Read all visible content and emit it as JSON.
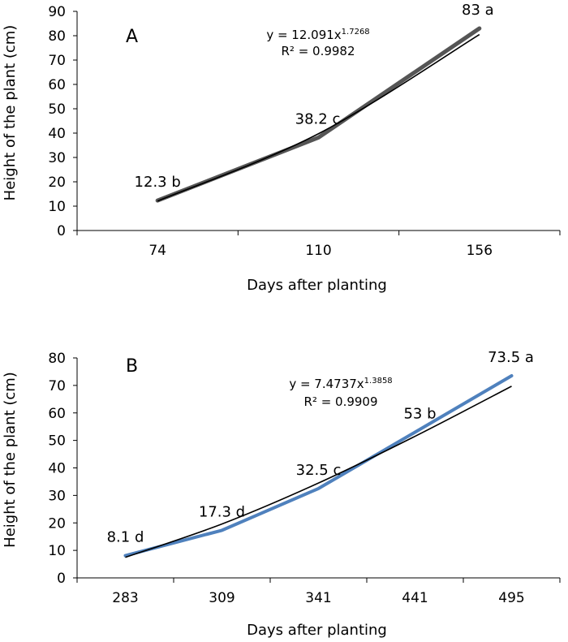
{
  "chart_data": [
    {
      "type": "line",
      "panel_label": "A",
      "xlabel": "Days after planting",
      "ylabel": "Height of the plant (cm)",
      "ylim": [
        0,
        90
      ],
      "yticks": [
        "0",
        "10",
        "20",
        "30",
        "40",
        "50",
        "60",
        "70",
        "80",
        "90"
      ],
      "categories": [
        "74",
        "110",
        "156"
      ],
      "series": [
        {
          "name": "Height",
          "values": [
            12.3,
            38.2,
            83
          ],
          "color": "#555555"
        },
        {
          "name": "Trend (power)",
          "values": [
            12.09,
            39.75,
            80.48
          ],
          "color": "#000000"
        }
      ],
      "data_labels": [
        "12.3 b",
        "38.2 c",
        "83 a"
      ],
      "equation": {
        "prefix": "y = 12.091x",
        "exponent": "1.7268",
        "r2": "R² = 0.9982"
      }
    },
    {
      "type": "line",
      "panel_label": "B",
      "xlabel": "Days after planting",
      "ylabel": "Height of the plant (cm)",
      "ylim": [
        0,
        80
      ],
      "yticks": [
        "0",
        "10",
        "20",
        "30",
        "40",
        "50",
        "60",
        "70",
        "80"
      ],
      "categories": [
        "283",
        "309",
        "341",
        "441",
        "495"
      ],
      "series": [
        {
          "name": "Height",
          "values": [
            8.1,
            17.3,
            32.5,
            53,
            73.5
          ],
          "color": "#4f81bd"
        },
        {
          "name": "Trend (power)",
          "values": [
            7.47,
            19.6,
            34.5,
            51.5,
            69.7
          ],
          "color": "#000000"
        }
      ],
      "data_labels": [
        "8.1 d",
        "17.3 d",
        "32.5 c",
        "53 b",
        "73.5 a"
      ],
      "equation": {
        "prefix": "y = 7.4737x",
        "exponent": "1.3858",
        "r2": "R² = 0.9909"
      }
    }
  ]
}
